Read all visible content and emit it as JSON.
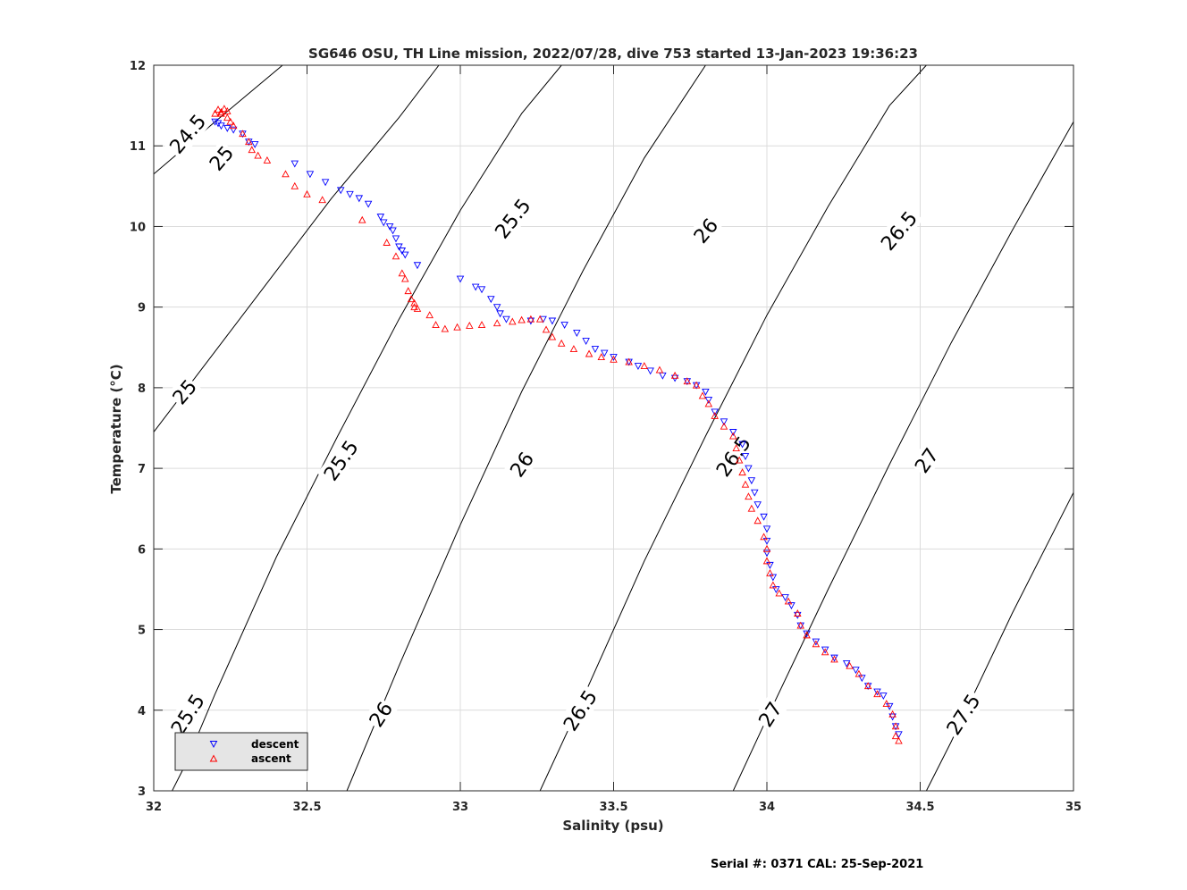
{
  "chart_data": {
    "type": "scatter",
    "title": "SG646 OSU, TH Line mission, 2022/07/28, dive 753 started 13-Jan-2023 19:36:23",
    "xlabel": "Salinity (psu)",
    "ylabel": "Temperature (°C)",
    "xlim": [
      32,
      35
    ],
    "ylim": [
      3,
      12
    ],
    "x_ticks": [
      "32",
      "32.5",
      "33",
      "33.5",
      "34",
      "34.5",
      "35"
    ],
    "y_ticks": [
      "3",
      "4",
      "5",
      "6",
      "7",
      "8",
      "9",
      "10",
      "11",
      "12"
    ],
    "grid": true,
    "legend_position": "bottom-left",
    "footer": "Serial #: 0371  CAL: 25-Sep-2021",
    "series": [
      {
        "name": "descent",
        "marker": "triangle-down",
        "color": "#0000ff",
        "points": [
          [
            32.2,
            11.3
          ],
          [
            32.21,
            11.28
          ],
          [
            32.22,
            11.25
          ],
          [
            32.24,
            11.22
          ],
          [
            32.26,
            11.2
          ],
          [
            32.29,
            11.15
          ],
          [
            32.31,
            11.05
          ],
          [
            32.33,
            11.02
          ],
          [
            32.46,
            10.78
          ],
          [
            32.51,
            10.65
          ],
          [
            32.56,
            10.55
          ],
          [
            32.61,
            10.45
          ],
          [
            32.64,
            10.4
          ],
          [
            32.67,
            10.35
          ],
          [
            32.7,
            10.28
          ],
          [
            32.74,
            10.12
          ],
          [
            32.75,
            10.05
          ],
          [
            32.77,
            10.0
          ],
          [
            32.78,
            9.95
          ],
          [
            32.79,
            9.85
          ],
          [
            32.8,
            9.75
          ],
          [
            32.81,
            9.7
          ],
          [
            32.82,
            9.65
          ],
          [
            32.86,
            9.52
          ],
          [
            33.0,
            9.35
          ],
          [
            33.05,
            9.25
          ],
          [
            33.07,
            9.22
          ],
          [
            33.1,
            9.1
          ],
          [
            33.12,
            9.0
          ],
          [
            33.13,
            8.92
          ],
          [
            33.15,
            8.85
          ],
          [
            33.23,
            8.83
          ],
          [
            33.27,
            8.85
          ],
          [
            33.3,
            8.83
          ],
          [
            33.34,
            8.78
          ],
          [
            33.38,
            8.68
          ],
          [
            33.41,
            8.58
          ],
          [
            33.44,
            8.48
          ],
          [
            33.47,
            8.43
          ],
          [
            33.5,
            8.38
          ],
          [
            33.55,
            8.32
          ],
          [
            33.58,
            8.27
          ],
          [
            33.62,
            8.21
          ],
          [
            33.66,
            8.15
          ],
          [
            33.7,
            8.12
          ],
          [
            33.74,
            8.08
          ],
          [
            33.77,
            8.03
          ],
          [
            33.8,
            7.95
          ],
          [
            33.81,
            7.85
          ],
          [
            33.83,
            7.7
          ],
          [
            33.86,
            7.58
          ],
          [
            33.89,
            7.45
          ],
          [
            33.92,
            7.3
          ],
          [
            33.93,
            7.15
          ],
          [
            33.94,
            7.0
          ],
          [
            33.95,
            6.85
          ],
          [
            33.96,
            6.7
          ],
          [
            33.97,
            6.55
          ],
          [
            33.99,
            6.4
          ],
          [
            34.0,
            6.25
          ],
          [
            34.0,
            6.1
          ],
          [
            34.0,
            5.95
          ],
          [
            34.01,
            5.8
          ],
          [
            34.02,
            5.65
          ],
          [
            34.03,
            5.5
          ],
          [
            34.06,
            5.4
          ],
          [
            34.08,
            5.3
          ],
          [
            34.1,
            5.18
          ],
          [
            34.11,
            5.05
          ],
          [
            34.13,
            4.95
          ],
          [
            34.16,
            4.85
          ],
          [
            34.19,
            4.75
          ],
          [
            34.22,
            4.65
          ],
          [
            34.26,
            4.58
          ],
          [
            34.29,
            4.5
          ],
          [
            34.31,
            4.4
          ],
          [
            34.33,
            4.3
          ],
          [
            34.36,
            4.23
          ],
          [
            34.38,
            4.18
          ],
          [
            34.4,
            4.05
          ],
          [
            34.41,
            3.92
          ],
          [
            34.42,
            3.8
          ],
          [
            34.43,
            3.7
          ]
        ]
      },
      {
        "name": "ascent",
        "marker": "triangle-up",
        "color": "#ff0000",
        "points": [
          [
            32.2,
            11.4
          ],
          [
            32.21,
            11.45
          ],
          [
            32.22,
            11.42
          ],
          [
            32.23,
            11.46
          ],
          [
            32.24,
            11.43
          ],
          [
            32.22,
            11.4
          ],
          [
            32.24,
            11.35
          ],
          [
            32.25,
            11.3
          ],
          [
            32.26,
            11.25
          ],
          [
            32.29,
            11.15
          ],
          [
            32.31,
            11.05
          ],
          [
            32.32,
            10.95
          ],
          [
            32.34,
            10.88
          ],
          [
            32.37,
            10.82
          ],
          [
            32.43,
            10.65
          ],
          [
            32.46,
            10.5
          ],
          [
            32.5,
            10.4
          ],
          [
            32.55,
            10.33
          ],
          [
            32.68,
            10.08
          ],
          [
            32.76,
            9.8
          ],
          [
            32.79,
            9.63
          ],
          [
            32.81,
            9.42
          ],
          [
            32.82,
            9.35
          ],
          [
            32.83,
            9.2
          ],
          [
            32.84,
            9.1
          ],
          [
            32.85,
            9.05
          ],
          [
            32.85,
            9.0
          ],
          [
            32.86,
            8.98
          ],
          [
            32.9,
            8.9
          ],
          [
            32.92,
            8.78
          ],
          [
            32.95,
            8.73
          ],
          [
            32.99,
            8.75
          ],
          [
            33.03,
            8.77
          ],
          [
            33.07,
            8.78
          ],
          [
            33.12,
            8.8
          ],
          [
            33.17,
            8.82
          ],
          [
            33.2,
            8.84
          ],
          [
            33.23,
            8.85
          ],
          [
            33.26,
            8.85
          ],
          [
            33.28,
            8.72
          ],
          [
            33.3,
            8.63
          ],
          [
            33.33,
            8.55
          ],
          [
            33.37,
            8.48
          ],
          [
            33.42,
            8.42
          ],
          [
            33.46,
            8.38
          ],
          [
            33.5,
            8.35
          ],
          [
            33.55,
            8.32
          ],
          [
            33.6,
            8.27
          ],
          [
            33.65,
            8.22
          ],
          [
            33.7,
            8.15
          ],
          [
            33.74,
            8.08
          ],
          [
            33.77,
            8.03
          ],
          [
            33.79,
            7.9
          ],
          [
            33.81,
            7.8
          ],
          [
            33.83,
            7.65
          ],
          [
            33.86,
            7.52
          ],
          [
            33.89,
            7.4
          ],
          [
            33.9,
            7.25
          ],
          [
            33.91,
            7.1
          ],
          [
            33.92,
            6.95
          ],
          [
            33.93,
            6.8
          ],
          [
            33.94,
            6.65
          ],
          [
            33.95,
            6.5
          ],
          [
            33.97,
            6.35
          ],
          [
            33.99,
            6.15
          ],
          [
            34.0,
            6.0
          ],
          [
            34.0,
            5.85
          ],
          [
            34.01,
            5.7
          ],
          [
            34.02,
            5.55
          ],
          [
            34.04,
            5.45
          ],
          [
            34.07,
            5.35
          ],
          [
            34.1,
            5.2
          ],
          [
            34.11,
            5.05
          ],
          [
            34.13,
            4.93
          ],
          [
            34.16,
            4.82
          ],
          [
            34.19,
            4.72
          ],
          [
            34.22,
            4.63
          ],
          [
            34.27,
            4.55
          ],
          [
            34.3,
            4.45
          ],
          [
            34.33,
            4.3
          ],
          [
            34.36,
            4.2
          ],
          [
            34.39,
            4.08
          ],
          [
            34.41,
            3.95
          ],
          [
            34.42,
            3.8
          ],
          [
            34.42,
            3.68
          ],
          [
            34.43,
            3.62
          ]
        ]
      }
    ],
    "isopycnals": [
      {
        "sigma": "24.5",
        "points": [
          [
            32.0,
            10.65
          ],
          [
            32.2,
            11.3
          ],
          [
            32.31,
            11.65
          ],
          [
            32.42,
            12.0
          ]
        ]
      },
      {
        "sigma": "25",
        "points": [
          [
            32.0,
            7.45
          ],
          [
            32.2,
            8.45
          ],
          [
            32.4,
            9.45
          ],
          [
            32.58,
            10.35
          ],
          [
            32.8,
            11.35
          ],
          [
            32.93,
            12.0
          ]
        ]
      },
      {
        "sigma": "25.5",
        "points": [
          [
            32.0,
            2.55
          ],
          [
            32.1,
            3.3
          ],
          [
            32.2,
            4.2
          ],
          [
            32.4,
            5.9
          ],
          [
            32.6,
            7.4
          ],
          [
            32.8,
            8.85
          ],
          [
            33.0,
            10.2
          ],
          [
            33.2,
            11.4
          ],
          [
            33.33,
            12.0
          ]
        ]
      },
      {
        "sigma": "26",
        "points": [
          [
            32.63,
            3.0
          ],
          [
            32.8,
            4.55
          ],
          [
            33.0,
            6.3
          ],
          [
            33.2,
            7.95
          ],
          [
            33.4,
            9.45
          ],
          [
            33.6,
            10.85
          ],
          [
            33.8,
            12.0
          ]
        ]
      },
      {
        "sigma": "26.5",
        "points": [
          [
            33.26,
            3.0
          ],
          [
            33.4,
            4.15
          ],
          [
            33.6,
            5.85
          ],
          [
            33.8,
            7.4
          ],
          [
            34.0,
            8.9
          ],
          [
            34.2,
            10.25
          ],
          [
            34.4,
            11.5
          ],
          [
            34.52,
            12.0
          ]
        ]
      },
      {
        "sigma": "27",
        "points": [
          [
            33.89,
            3.0
          ],
          [
            34.0,
            3.9
          ],
          [
            34.2,
            5.5
          ],
          [
            34.4,
            7.05
          ],
          [
            34.6,
            8.55
          ],
          [
            34.8,
            9.95
          ],
          [
            35.0,
            11.3
          ]
        ]
      },
      {
        "sigma": "27.5",
        "points": [
          [
            34.52,
            3.0
          ],
          [
            34.6,
            3.6
          ],
          [
            34.8,
            5.2
          ],
          [
            35.0,
            6.7
          ]
        ]
      }
    ],
    "contour_labels": [
      {
        "text": "24.5",
        "x": 32.11,
        "y": 11.15,
        "angle": -50
      },
      {
        "text": "25",
        "x": 32.22,
        "y": 10.85,
        "angle": -50
      },
      {
        "text": "25",
        "x": 32.1,
        "y": 7.95,
        "angle": -50
      },
      {
        "text": "25.5",
        "x": 33.17,
        "y": 10.1,
        "angle": -52
      },
      {
        "text": "25.5",
        "x": 32.61,
        "y": 7.1,
        "angle": -55
      },
      {
        "text": "25.5",
        "x": 32.11,
        "y": 3.95,
        "angle": -57
      },
      {
        "text": "26",
        "x": 33.8,
        "y": 9.95,
        "angle": -50
      },
      {
        "text": "26",
        "x": 33.2,
        "y": 7.05,
        "angle": -55
      },
      {
        "text": "26",
        "x": 32.74,
        "y": 3.95,
        "angle": -57
      },
      {
        "text": "26.5",
        "x": 34.43,
        "y": 9.95,
        "angle": -50
      },
      {
        "text": "26.5",
        "x": 33.89,
        "y": 7.15,
        "angle": -55
      },
      {
        "text": "26.5",
        "x": 33.39,
        "y": 4.0,
        "angle": -57
      },
      {
        "text": "27",
        "x": 34.52,
        "y": 7.1,
        "angle": -55
      },
      {
        "text": "27",
        "x": 34.01,
        "y": 3.95,
        "angle": -57
      },
      {
        "text": "27.5",
        "x": 34.64,
        "y": 3.95,
        "angle": -57
      }
    ]
  },
  "legend": {
    "descent_label": "descent",
    "ascent_label": "ascent"
  }
}
